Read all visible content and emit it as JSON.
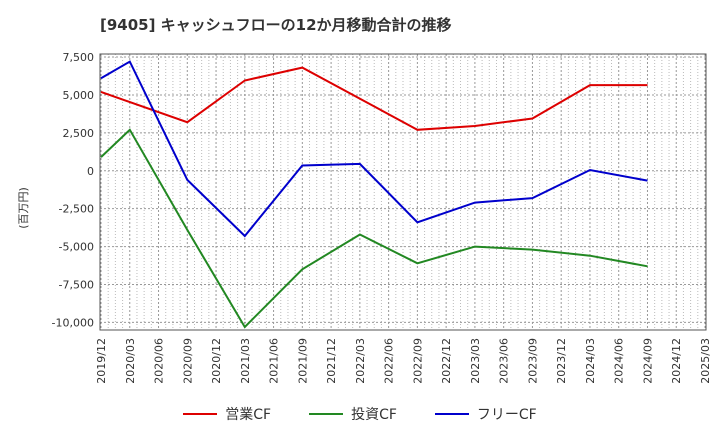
{
  "chart_data": {
    "type": "line",
    "title": "[9405]  キャッシュフローの12か月移動合計の推移",
    "xlabel": "",
    "ylabel": "(百万円)",
    "ylim": [
      -10500,
      7700
    ],
    "yticks": [
      7500,
      5000,
      2500,
      0,
      -2500,
      -5000,
      -7500,
      -10000
    ],
    "ytick_labels": [
      "7,500",
      "5,000",
      "2,500",
      "0",
      "-2,500",
      "-5,000",
      "-7,500",
      "-10,000"
    ],
    "categories": [
      "2019/12",
      "2020/03",
      "2020/06",
      "2020/09",
      "2020/12",
      "2021/03",
      "2021/06",
      "2021/09",
      "2021/12",
      "2022/03",
      "2022/06",
      "2022/09",
      "2022/12",
      "2023/03",
      "2023/06",
      "2023/09",
      "2023/12",
      "2024/03",
      "2024/06",
      "2024/09",
      "2024/12",
      "2025/03"
    ],
    "series": [
      {
        "name": "営業CF",
        "color": "#dd0000",
        "values": [
          5200,
          null,
          null,
          3200,
          null,
          5950,
          null,
          6800,
          null,
          null,
          null,
          2700,
          null,
          2950,
          null,
          3450,
          null,
          5650,
          null,
          5650,
          null,
          null
        ]
      },
      {
        "name": "投資CF",
        "color": "#228822",
        "values": [
          900,
          2700,
          null,
          -3900,
          null,
          -10300,
          null,
          -6500,
          null,
          -4200,
          null,
          -6100,
          null,
          -5000,
          null,
          -5200,
          null,
          -5600,
          null,
          -6300,
          null,
          null
        ]
      },
      {
        "name": "フリーCF",
        "color": "#0000cc",
        "values": [
          6100,
          7200,
          null,
          -600,
          null,
          -4300,
          null,
          350,
          null,
          450,
          null,
          -3400,
          null,
          -2100,
          null,
          -1800,
          null,
          50,
          null,
          -650,
          null,
          null
        ]
      }
    ],
    "grid": true,
    "legend": "bottom"
  }
}
